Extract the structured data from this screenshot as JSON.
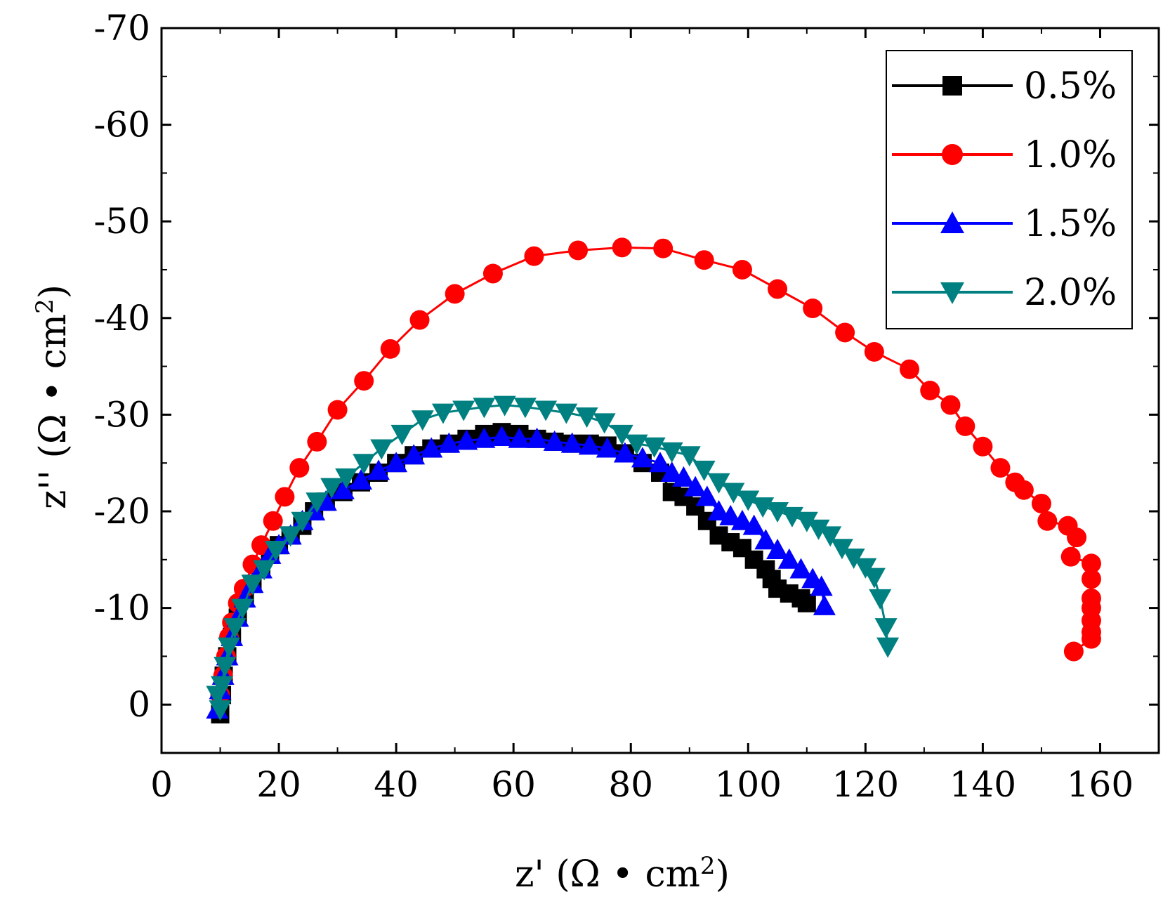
{
  "chart_data": {
    "type": "scatter",
    "title": "",
    "xlabel": {
      "prefix": "z' (",
      "unit": "Ω • cm",
      "exp": "2",
      "suffix": ")"
    },
    "ylabel": {
      "prefix": "z'' (",
      "unit": "Ω • cm",
      "exp": "2",
      "suffix": ")"
    },
    "xlim": [
      0,
      170
    ],
    "ylim": [
      5,
      -70
    ],
    "xticks": [
      0,
      20,
      40,
      60,
      80,
      100,
      120,
      140,
      160
    ],
    "yticks": [
      0,
      -10,
      -20,
      -30,
      -40,
      -50,
      -60,
      -70
    ],
    "xtick_labels": [
      "0",
      "20",
      "40",
      "60",
      "80",
      "100",
      "120",
      "140",
      "160"
    ],
    "ytick_labels": [
      "0",
      "-10",
      "-20",
      "-30",
      "-40",
      "-50",
      "-60",
      "-70"
    ],
    "legend_position": "top-right",
    "series": [
      {
        "name": "0.5%",
        "color": "#000000",
        "marker": "square",
        "points": [
          [
            10,
            1
          ],
          [
            10.3,
            -1
          ],
          [
            10.6,
            -3
          ],
          [
            11.2,
            -5
          ],
          [
            12,
            -7
          ],
          [
            13,
            -9
          ],
          [
            14.2,
            -11
          ],
          [
            15.5,
            -12.5
          ],
          [
            17,
            -14
          ],
          [
            18.5,
            -15.5
          ],
          [
            20,
            -16.5
          ],
          [
            22,
            -17.5
          ],
          [
            24,
            -18.5
          ],
          [
            26,
            -20
          ],
          [
            28,
            -21
          ],
          [
            31,
            -22
          ],
          [
            34,
            -23
          ],
          [
            37,
            -24
          ],
          [
            40,
            -25
          ],
          [
            43,
            -25.8
          ],
          [
            46,
            -26.5
          ],
          [
            49,
            -27
          ],
          [
            52,
            -27.5
          ],
          [
            55,
            -28
          ],
          [
            58,
            -28.2
          ],
          [
            61,
            -28
          ],
          [
            64,
            -27.5
          ],
          [
            67,
            -27.2
          ],
          [
            70,
            -27
          ],
          [
            73,
            -27
          ],
          [
            76,
            -26.8
          ],
          [
            79,
            -26
          ],
          [
            82,
            -25
          ],
          [
            85,
            -24
          ],
          [
            87,
            -22
          ],
          [
            89,
            -21.5
          ],
          [
            91,
            -20.5
          ],
          [
            93,
            -19
          ],
          [
            95,
            -17.5
          ],
          [
            97,
            -16.8
          ],
          [
            99,
            -16.2
          ],
          [
            101,
            -15
          ],
          [
            103,
            -14
          ],
          [
            104,
            -13
          ],
          [
            105,
            -12
          ],
          [
            107,
            -11.5
          ],
          [
            109,
            -11
          ],
          [
            110,
            -10.5
          ]
        ]
      },
      {
        "name": "1.0%",
        "color": "#ff0000",
        "marker": "circle",
        "points": [
          [
            10,
            -1
          ],
          [
            10.5,
            -3
          ],
          [
            11,
            -5
          ],
          [
            11.5,
            -7
          ],
          [
            12,
            -8.5
          ],
          [
            13,
            -10.5
          ],
          [
            14,
            -12
          ],
          [
            15.5,
            -14.5
          ],
          [
            17,
            -16.5
          ],
          [
            19,
            -19
          ],
          [
            21,
            -21.5
          ],
          [
            23.5,
            -24.5
          ],
          [
            26.5,
            -27.2
          ],
          [
            30,
            -30.5
          ],
          [
            34.5,
            -33.5
          ],
          [
            39,
            -36.8
          ],
          [
            44,
            -39.8
          ],
          [
            50,
            -42.5
          ],
          [
            56.5,
            -44.6
          ],
          [
            63.5,
            -46.4
          ],
          [
            71,
            -47
          ],
          [
            78.5,
            -47.3
          ],
          [
            85.5,
            -47.2
          ],
          [
            92.5,
            -46
          ],
          [
            99,
            -45
          ],
          [
            105,
            -43
          ],
          [
            111,
            -41
          ],
          [
            116.5,
            -38.5
          ],
          [
            121.5,
            -36.5
          ],
          [
            127.5,
            -34.7
          ],
          [
            131,
            -32.5
          ],
          [
            134.5,
            -31
          ],
          [
            137,
            -28.8
          ],
          [
            140,
            -26.7
          ],
          [
            143,
            -24.5
          ],
          [
            145.5,
            -23
          ],
          [
            147,
            -22.2
          ],
          [
            150,
            -20.8
          ],
          [
            151,
            -19
          ],
          [
            154.5,
            -18.5
          ],
          [
            156,
            -17.3
          ],
          [
            155,
            -15.3
          ],
          [
            158.5,
            -14.6
          ],
          [
            158.5,
            -13
          ],
          [
            158.5,
            -11
          ],
          [
            158.5,
            -10
          ],
          [
            158.5,
            -8.7
          ],
          [
            158.5,
            -7.5
          ],
          [
            158.5,
            -6.8
          ],
          [
            155.5,
            -5.5
          ]
        ]
      },
      {
        "name": "1.5%",
        "color": "#0000ff",
        "marker": "triangle-up",
        "points": [
          [
            9.5,
            0.5
          ],
          [
            10,
            -1.5
          ],
          [
            10.5,
            -3
          ],
          [
            11.2,
            -5
          ],
          [
            12,
            -7
          ],
          [
            13,
            -9
          ],
          [
            14.2,
            -11
          ],
          [
            15.5,
            -12.5
          ],
          [
            17,
            -14
          ],
          [
            18.5,
            -15.5
          ],
          [
            20,
            -16.5
          ],
          [
            22,
            -17.5
          ],
          [
            24,
            -19
          ],
          [
            26,
            -20
          ],
          [
            28,
            -21
          ],
          [
            31,
            -22.2
          ],
          [
            34,
            -23.2
          ],
          [
            37,
            -24.2
          ],
          [
            40,
            -25
          ],
          [
            43,
            -25.8
          ],
          [
            46,
            -26.5
          ],
          [
            49,
            -27
          ],
          [
            52,
            -27.3
          ],
          [
            55,
            -27.5
          ],
          [
            58,
            -27.7
          ],
          [
            61,
            -27.5
          ],
          [
            64,
            -27.5
          ],
          [
            67,
            -27.2
          ],
          [
            70,
            -27
          ],
          [
            73,
            -26.8
          ],
          [
            76,
            -26.5
          ],
          [
            79,
            -26
          ],
          [
            82,
            -25.5
          ],
          [
            85,
            -25
          ],
          [
            87,
            -24
          ],
          [
            89,
            -23.5
          ],
          [
            91,
            -22.5
          ],
          [
            93,
            -21.5
          ],
          [
            95,
            -20
          ],
          [
            97,
            -19.5
          ],
          [
            99,
            -19
          ],
          [
            101,
            -18.5
          ],
          [
            103,
            -17
          ],
          [
            105,
            -16
          ],
          [
            107,
            -15
          ],
          [
            109,
            -14
          ],
          [
            111,
            -13
          ],
          [
            112.5,
            -12.2
          ],
          [
            113,
            -10.2
          ]
        ]
      },
      {
        "name": "2.0%",
        "color": "#008080",
        "marker": "triangle-down",
        "points": [
          [
            9.5,
            -1
          ],
          [
            10,
            0.5
          ],
          [
            10.3,
            -2
          ],
          [
            10.8,
            -4
          ],
          [
            11.5,
            -6
          ],
          [
            12.5,
            -8
          ],
          [
            13.8,
            -10
          ],
          [
            15.5,
            -12.5
          ],
          [
            17.5,
            -14
          ],
          [
            19.5,
            -16
          ],
          [
            22,
            -17.5
          ],
          [
            24,
            -19
          ],
          [
            26.5,
            -21
          ],
          [
            29,
            -22.5
          ],
          [
            31.5,
            -23.5
          ],
          [
            34.5,
            -25
          ],
          [
            37.5,
            -26.5
          ],
          [
            41,
            -28
          ],
          [
            44.5,
            -29.5
          ],
          [
            48,
            -30.2
          ],
          [
            51.5,
            -30.5
          ],
          [
            55,
            -30.8
          ],
          [
            58.5,
            -31
          ],
          [
            62,
            -30.8
          ],
          [
            65.5,
            -30.5
          ],
          [
            69,
            -30.2
          ],
          [
            72.5,
            -29.8
          ],
          [
            75.5,
            -29.2
          ],
          [
            78.5,
            -28
          ],
          [
            81,
            -27
          ],
          [
            84,
            -26.7
          ],
          [
            87,
            -26.2
          ],
          [
            90,
            -25.8
          ],
          [
            92.5,
            -24.3
          ],
          [
            95,
            -23
          ],
          [
            97.5,
            -22
          ],
          [
            100,
            -21.2
          ],
          [
            102.5,
            -20.5
          ],
          [
            105,
            -20
          ],
          [
            107.5,
            -19.5
          ],
          [
            110,
            -19
          ],
          [
            112,
            -18.2
          ],
          [
            114,
            -17.5
          ],
          [
            116,
            -16.2
          ],
          [
            118,
            -15.2
          ],
          [
            120,
            -14.2
          ],
          [
            121.5,
            -13.2
          ],
          [
            122.5,
            -11
          ],
          [
            123.5,
            -8
          ],
          [
            123.8,
            -6
          ]
        ]
      }
    ]
  }
}
